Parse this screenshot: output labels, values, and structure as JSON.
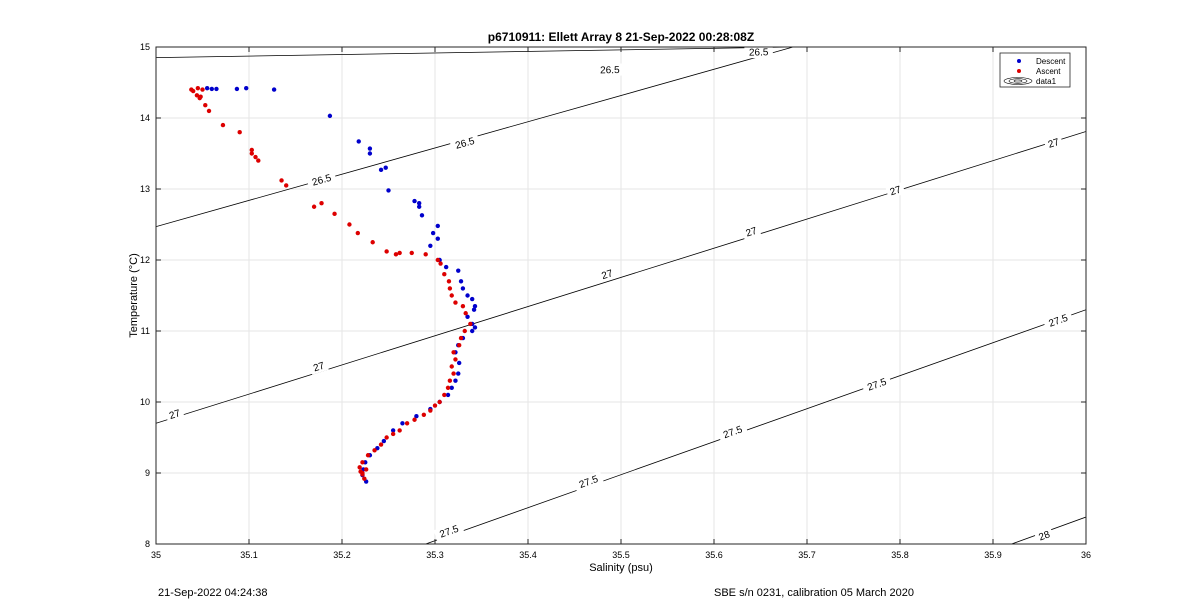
{
  "chart_data": {
    "type": "scatter",
    "title": "p6710911: Ellett Array 8 21-Sep-2022 00:28:08Z",
    "xlabel": "Salinity (psu)",
    "ylabel": "Temperature (°C)",
    "xlim": [
      35,
      36
    ],
    "ylim": [
      8,
      15
    ],
    "xticks": [
      "35",
      "35.1",
      "35.2",
      "35.3",
      "35.4",
      "35.5",
      "35.6",
      "35.7",
      "35.8",
      "35.9",
      "36"
    ],
    "yticks": [
      "8",
      "9",
      "10",
      "11",
      "12",
      "13",
      "14",
      "15"
    ],
    "grid": true,
    "legend_position": "top-right",
    "legend": [
      "Descent",
      "Ascent",
      "data1"
    ],
    "colors": {
      "descent": "#0000cc",
      "ascent": "#dd0000",
      "contour": "#000000",
      "grid": "#e6e6e6"
    },
    "series": [
      {
        "name": "Descent",
        "x": [
          35.055,
          35.06,
          35.065,
          35.087,
          35.097,
          35.127,
          35.187,
          35.218,
          35.23,
          35.23,
          35.242,
          35.247,
          35.25,
          35.278,
          35.283,
          35.283,
          35.286,
          35.298,
          35.303,
          35.303,
          35.295,
          35.305,
          35.312,
          35.325,
          35.328,
          35.33,
          35.335,
          35.34,
          35.343,
          35.342,
          35.335,
          35.34,
          35.343,
          35.34,
          35.33,
          35.325,
          35.322,
          35.326,
          35.325,
          35.322,
          35.318,
          35.314,
          35.305,
          35.295,
          35.28,
          35.265,
          35.255,
          35.245,
          35.238,
          35.23,
          35.225,
          35.223,
          35.222,
          35.226
        ],
        "y": [
          14.42,
          14.41,
          14.41,
          14.41,
          14.42,
          14.4,
          14.03,
          13.67,
          13.57,
          13.5,
          13.27,
          13.3,
          12.98,
          12.83,
          12.8,
          12.75,
          12.63,
          12.38,
          12.48,
          12.3,
          12.2,
          12.0,
          11.9,
          11.85,
          11.7,
          11.6,
          11.5,
          11.45,
          11.35,
          11.3,
          11.2,
          11.1,
          11.05,
          11.0,
          10.9,
          10.8,
          10.7,
          10.55,
          10.4,
          10.3,
          10.2,
          10.1,
          10.0,
          9.9,
          9.8,
          9.7,
          9.6,
          9.45,
          9.35,
          9.25,
          9.15,
          9.05,
          8.97,
          8.88
        ]
      },
      {
        "name": "Ascent",
        "x": [
          35.038,
          35.04,
          35.045,
          35.05,
          35.044,
          35.048,
          35.047,
          35.053,
          35.057,
          35.072,
          35.09,
          35.103,
          35.103,
          35.107,
          35.11,
          35.135,
          35.14,
          35.17,
          35.178,
          35.192,
          35.208,
          35.217,
          35.233,
          35.248,
          35.258,
          35.262,
          35.275,
          35.29,
          35.303,
          35.306,
          35.31,
          35.315,
          35.316,
          35.318,
          35.322,
          35.33,
          35.333,
          35.338,
          35.332,
          35.328,
          35.326,
          35.32,
          35.322,
          35.318,
          35.32,
          35.316,
          35.314,
          35.31,
          35.305,
          35.3,
          35.295,
          35.288,
          35.278,
          35.27,
          35.262,
          35.255,
          35.248,
          35.242,
          35.235,
          35.228,
          35.222,
          35.219,
          35.22,
          35.222,
          35.226,
          35.224,
          35.222
        ],
        "y": [
          14.4,
          14.38,
          14.42,
          14.4,
          14.32,
          14.3,
          14.28,
          14.18,
          14.1,
          13.9,
          13.8,
          13.55,
          13.5,
          13.45,
          13.4,
          13.12,
          13.05,
          12.75,
          12.8,
          12.65,
          12.5,
          12.38,
          12.25,
          12.12,
          12.08,
          12.1,
          12.1,
          12.08,
          12.0,
          11.95,
          11.8,
          11.7,
          11.6,
          11.5,
          11.4,
          11.35,
          11.25,
          11.1,
          11.0,
          10.9,
          10.8,
          10.7,
          10.6,
          10.5,
          10.4,
          10.3,
          10.2,
          10.1,
          10.0,
          9.95,
          9.88,
          9.82,
          9.75,
          9.7,
          9.6,
          9.55,
          9.5,
          9.4,
          9.32,
          9.25,
          9.15,
          9.08,
          9.02,
          8.98,
          9.05,
          8.92,
          9.0
        ]
      }
    ],
    "contours": [
      {
        "level": "26.5",
        "x": [
          35.0,
          35.685
        ],
        "y": [
          14.85,
          15.0
        ],
        "labels": [
          {
            "text": "26.5",
            "x": 35.648,
            "y": 14.93
          },
          {
            "text": "26.5",
            "x": 35.488,
            "y": 14.68
          }
        ]
      },
      {
        "level": "26.5",
        "x": [
          35.0,
          35.685
        ],
        "y": [
          12.47,
          15.0
        ],
        "labels": [
          {
            "text": "26.5",
            "x": 35.332,
            "y": 13.65
          },
          {
            "text": "26.5",
            "x": 35.178,
            "y": 13.13
          }
        ]
      },
      {
        "level": "27",
        "x": [
          35.0,
          36.0
        ],
        "y": [
          9.7,
          13.81
        ],
        "labels": [
          {
            "text": "27",
            "x": 35.965,
            "y": 13.65
          },
          {
            "text": "27",
            "x": 35.795,
            "y": 12.98
          },
          {
            "text": "27",
            "x": 35.64,
            "y": 12.4
          },
          {
            "text": "27",
            "x": 35.485,
            "y": 11.8
          },
          {
            "text": "27",
            "x": 35.175,
            "y": 10.5
          },
          {
            "text": "27",
            "x": 35.02,
            "y": 9.83
          }
        ]
      },
      {
        "level": "27.5",
        "x": [
          35.29,
          36.0
        ],
        "y": [
          8.0,
          11.3
        ],
        "labels": [
          {
            "text": "27.5",
            "x": 35.97,
            "y": 11.15
          },
          {
            "text": "27.5",
            "x": 35.775,
            "y": 10.25
          },
          {
            "text": "27.5",
            "x": 35.62,
            "y": 9.58
          },
          {
            "text": "27.5",
            "x": 35.465,
            "y": 8.88
          },
          {
            "text": "27.5",
            "x": 35.315,
            "y": 8.18
          }
        ]
      },
      {
        "level": "28",
        "x": [
          35.92,
          36.0
        ],
        "y": [
          8.0,
          8.38
        ],
        "labels": [
          {
            "text": "28",
            "x": 35.955,
            "y": 8.12
          }
        ]
      }
    ]
  },
  "footer": {
    "timestamp": "21-Sep-2022 04:24:38",
    "calibration": "SBE s/n 0231, calibration 05 March 2020"
  }
}
